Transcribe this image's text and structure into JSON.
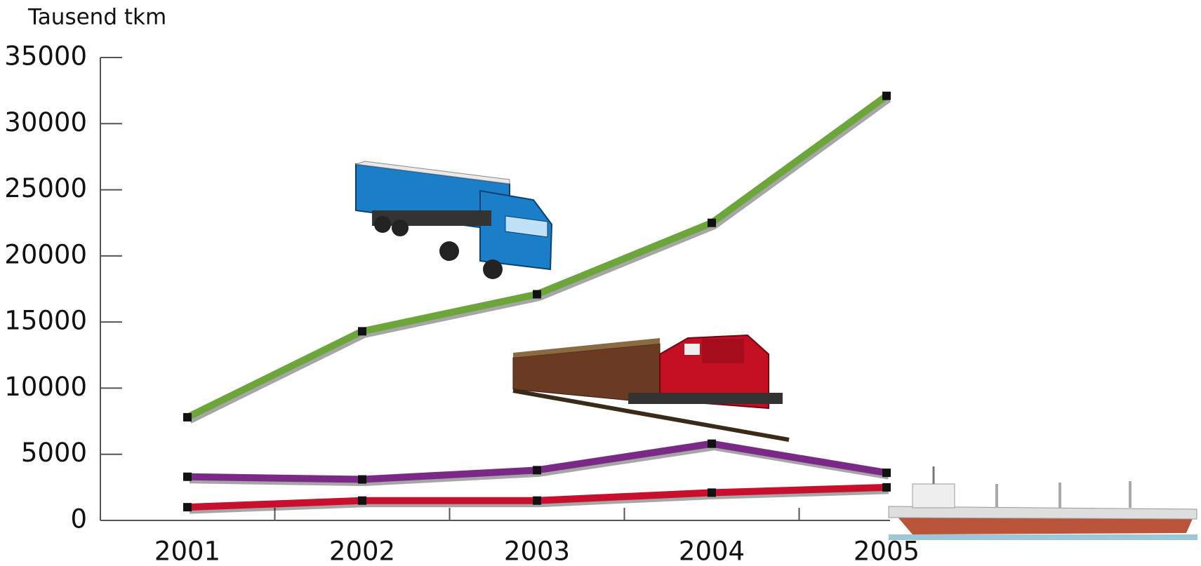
{
  "chart_data": {
    "type": "line",
    "y_axis_label": "Tausend tkm",
    "categories": [
      "2001",
      "2002",
      "2003",
      "2004",
      "2005"
    ],
    "series": [
      {
        "color": "#6ca63a",
        "values": [
          7800,
          14300,
          17100,
          22500,
          32100
        ]
      },
      {
        "color": "#7a2a86",
        "values": [
          3300,
          3100,
          3800,
          5800,
          3600
        ]
      },
      {
        "color": "#c8102e",
        "values": [
          1000,
          1500,
          1500,
          2100,
          2500
        ]
      }
    ],
    "ylim": [
      0,
      35000
    ],
    "yticks": [
      0,
      5000,
      10000,
      15000,
      20000,
      25000,
      30000,
      35000
    ]
  }
}
